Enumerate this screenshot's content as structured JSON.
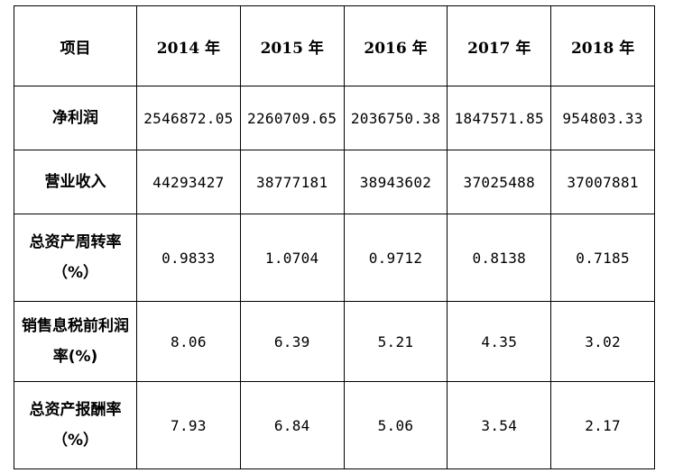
{
  "table": {
    "headers": [
      "项目",
      "2014 年",
      "2015 年",
      "2016 年",
      "2017 年",
      "2018 年"
    ],
    "rows": [
      {
        "label": "净利润",
        "values": [
          "2546872.05",
          "2260709.65",
          "2036750.38",
          "1847571.85",
          "954803.33"
        ]
      },
      {
        "label": "营业收入",
        "values": [
          "44293427",
          "38777181",
          "38943602",
          "37025488",
          "37007881"
        ]
      },
      {
        "label": "总资产周转率（%）",
        "values": [
          "0.9833",
          "1.0704",
          "0.9712",
          "0.8138",
          "0.7185"
        ]
      },
      {
        "label": "销售息税前利润率(%)",
        "values": [
          "8.06",
          "6.39",
          "5.21",
          "4.35",
          "3.02"
        ]
      },
      {
        "label": "总资产报酬率（%）",
        "values": [
          "7.93",
          "6.84",
          "5.06",
          "3.54",
          "2.17"
        ]
      }
    ]
  }
}
